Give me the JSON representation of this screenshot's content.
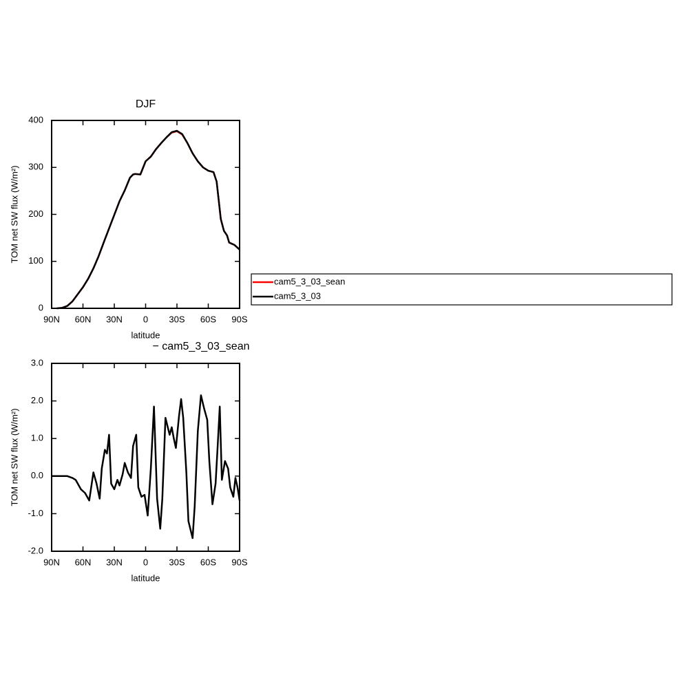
{
  "chart_data": [
    {
      "type": "line",
      "title": "DJF",
      "xlabel": "latitude",
      "ylabel": "TOM net SW flux (W/m²)",
      "x": [
        85,
        80,
        75,
        70,
        65,
        60,
        55,
        50,
        45,
        40,
        35,
        30,
        25,
        20,
        15,
        12,
        10,
        5,
        0,
        -5,
        -10,
        -15,
        -20,
        -25,
        -30,
        -35,
        -40,
        -45,
        -50,
        -55,
        -60,
        -65,
        -68,
        -70,
        -72,
        -75,
        -78,
        -80,
        -85,
        -90
      ],
      "series": [
        {
          "name": "cam5_3_03_sean",
          "color": "#ff0000",
          "values": [
            0,
            1,
            5,
            15,
            30,
            45,
            63,
            85,
            111,
            141,
            170,
            199,
            228,
            251,
            278,
            285,
            286,
            285,
            313,
            323,
            339,
            352,
            364,
            374,
            377,
            370,
            352,
            330,
            313,
            300,
            293,
            290,
            270,
            230,
            190,
            165,
            155,
            140,
            135,
            125
          ]
        },
        {
          "name": "cam5_3_03",
          "color": "#000000",
          "values": [
            0,
            1,
            5,
            15,
            30,
            45,
            63,
            85,
            111,
            141,
            170,
            199,
            228,
            251,
            278,
            285,
            286,
            285,
            313,
            323,
            339,
            352,
            364,
            375,
            378,
            371,
            352,
            330,
            313,
            300,
            293,
            290,
            270,
            230,
            190,
            165,
            155,
            140,
            135,
            125
          ]
        }
      ],
      "xlim": [
        90,
        -90
      ],
      "xticks": [
        {
          "value": 90,
          "label": "90N"
        },
        {
          "value": 60,
          "label": "60N"
        },
        {
          "value": 30,
          "label": "30N"
        },
        0,
        {
          "value": -30,
          "label": "30S"
        },
        {
          "value": -60,
          "label": "60S"
        },
        {
          "value": -90,
          "label": "90S"
        }
      ],
      "ylim": [
        0,
        400
      ],
      "yticks": [
        0,
        100,
        200,
        300,
        400
      ],
      "legend": "right"
    },
    {
      "type": "line",
      "title": "− cam5_3_03_sean",
      "xlabel": "latitude",
      "ylabel": "TOM net SW flux (W/m²)",
      "x": [
        90,
        80,
        75,
        70,
        67,
        62,
        58,
        54,
        50,
        47,
        44,
        42,
        39,
        37,
        35,
        33,
        30,
        27,
        25,
        22,
        20,
        17,
        14,
        12,
        9,
        7,
        4,
        1,
        -2,
        -5,
        -8,
        -11,
        -14,
        -16,
        -19,
        -23,
        -25,
        -27,
        -29,
        -32,
        -34,
        -36,
        -39,
        -41,
        -45,
        -47,
        -50,
        -53,
        -56,
        -59,
        -61,
        -64,
        -67,
        -69,
        -71,
        -73,
        -76,
        -79,
        -81,
        -84,
        -86,
        -88,
        -90
      ],
      "values": [
        0,
        0,
        0,
        -0.05,
        -0.1,
        -0.35,
        -0.45,
        -0.65,
        0.1,
        -0.2,
        -0.6,
        0.2,
        0.7,
        0.6,
        1.1,
        -0.2,
        -0.35,
        -0.1,
        -0.25,
        0.05,
        0.35,
        0.1,
        -0.05,
        0.8,
        1.1,
        -0.3,
        -0.55,
        -0.5,
        -1.05,
        0.2,
        1.85,
        -0.6,
        -1.4,
        -0.6,
        1.55,
        1.1,
        1.3,
        1.0,
        0.75,
        1.6,
        2.05,
        1.55,
        0.1,
        -1.2,
        -1.65,
        -0.8,
        1.2,
        2.15,
        1.8,
        1.5,
        0.4,
        -0.75,
        -0.2,
        0.8,
        1.85,
        -0.1,
        0.4,
        0.2,
        -0.3,
        -0.55,
        -0.05,
        -0.3,
        -0.65
      ],
      "color": "#000000",
      "xlim": [
        90,
        -90
      ],
      "xticks": [
        {
          "value": 90,
          "label": "90N"
        },
        {
          "value": 60,
          "label": "60N"
        },
        {
          "value": 30,
          "label": "30N"
        },
        0,
        {
          "value": -30,
          "label": "30S"
        },
        {
          "value": -60,
          "label": "60S"
        },
        {
          "value": -90,
          "label": "90S"
        }
      ],
      "ylim": [
        -2,
        3
      ],
      "yticks": [
        {
          "value": -2,
          "label": "-2.0"
        },
        {
          "value": -1,
          "label": "-1.0"
        },
        {
          "value": 0,
          "label": "0.0"
        },
        {
          "value": 1,
          "label": "1.0"
        },
        {
          "value": 2,
          "label": "2.0"
        },
        {
          "value": 3,
          "label": "3.0"
        }
      ]
    }
  ]
}
